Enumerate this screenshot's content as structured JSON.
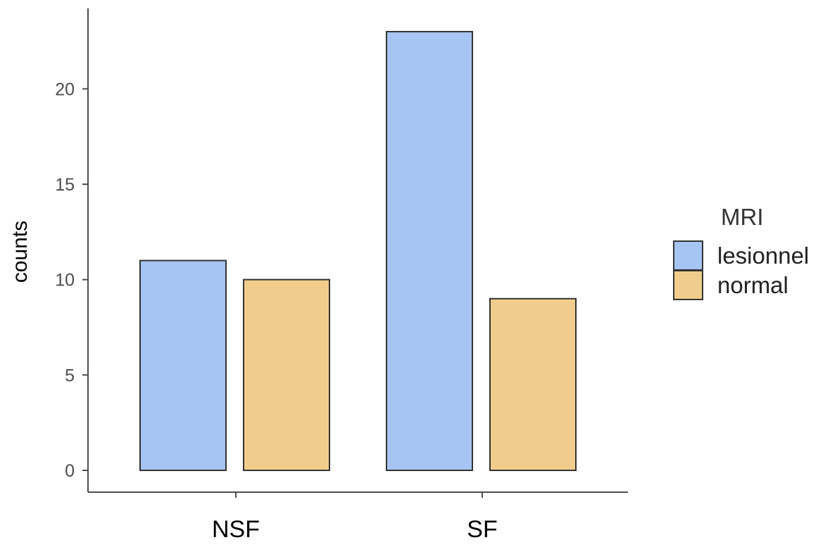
{
  "chart_data": {
    "type": "bar",
    "categories": [
      "NSF",
      "SF"
    ],
    "series": [
      {
        "name": "lesionnel",
        "color": "#a7c5f2",
        "values": [
          11,
          23
        ]
      },
      {
        "name": "normal",
        "color": "#f0cd8c",
        "values": [
          10,
          9
        ]
      }
    ],
    "xlabel": "",
    "ylabel": "counts",
    "ylim": [
      0,
      23
    ],
    "yticks": [
      0,
      5,
      10,
      15,
      20
    ],
    "grid": false,
    "legend": {
      "title": "MRI",
      "placement": "right"
    },
    "bar_outline_color": "#333333",
    "axis_color": "#4d4d4d"
  }
}
